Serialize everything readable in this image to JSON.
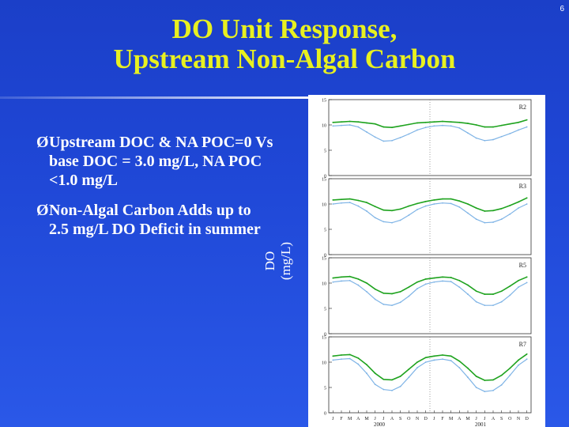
{
  "slide": {
    "number": "6",
    "title_line1": "DO Unit Response,",
    "title_line2": "Upstream Non-Algal Carbon",
    "bullets": [
      {
        "marker": "Ø",
        "text": "Upstream DOC & NA POC=0 Vs base DOC = 3.0 mg/L, NA POC <1.0 mg/L"
      },
      {
        "marker": "Ø",
        "text": "Non-Algal Carbon Adds up to 2.5 mg/L DO Deficit in summer"
      }
    ]
  },
  "colors": {
    "title": "#e8f020",
    "green_series": "#1fa31f",
    "blue_series": "#7fb4e6",
    "background": "#1f47d6"
  },
  "chart_data": {
    "type": "line",
    "ylabel": "DO (mg/L)",
    "x_month_labels": [
      "J",
      "F",
      "M",
      "A",
      "M",
      "J",
      "J",
      "A",
      "S",
      "O",
      "N",
      "D",
      "J",
      "F",
      "M",
      "A",
      "M",
      "J",
      "J",
      "A",
      "S",
      "O",
      "N",
      "D"
    ],
    "x_year_labels": [
      "2000",
      "2001"
    ],
    "ylim": [
      0,
      15
    ],
    "yticks": [
      "0",
      "5",
      "10",
      "15"
    ],
    "panels": [
      {
        "label": "R2",
        "green": [
          10.5,
          10.6,
          10.7,
          10.6,
          10.4,
          10.2,
          9.6,
          9.5,
          9.8,
          10.1,
          10.4,
          10.5,
          10.6,
          10.7,
          10.6,
          10.5,
          10.3,
          10.0,
          9.6,
          9.6,
          9.9,
          10.2,
          10.5,
          11.0
        ],
        "blue": [
          9.8,
          9.9,
          10.0,
          9.6,
          8.6,
          7.6,
          6.8,
          6.9,
          7.5,
          8.2,
          9.0,
          9.5,
          9.8,
          9.9,
          9.8,
          9.4,
          8.4,
          7.4,
          6.9,
          7.1,
          7.7,
          8.3,
          9.0,
          9.6
        ]
      },
      {
        "label": "R3",
        "green": [
          10.8,
          10.9,
          11.0,
          10.7,
          10.3,
          9.5,
          8.8,
          8.7,
          9.0,
          9.6,
          10.1,
          10.5,
          10.8,
          11.0,
          11.0,
          10.6,
          10.0,
          9.2,
          8.6,
          8.7,
          9.1,
          9.7,
          10.4,
          11.2
        ],
        "blue": [
          10.0,
          10.2,
          10.3,
          9.6,
          8.6,
          7.3,
          6.5,
          6.3,
          6.8,
          7.8,
          8.9,
          9.6,
          10.0,
          10.2,
          10.1,
          9.4,
          8.2,
          7.0,
          6.3,
          6.4,
          7.0,
          8.0,
          9.2,
          10.0
        ]
      },
      {
        "label": "R5",
        "green": [
          11.0,
          11.2,
          11.3,
          10.8,
          10.0,
          8.8,
          8.0,
          7.9,
          8.3,
          9.2,
          10.2,
          10.8,
          11.0,
          11.2,
          11.1,
          10.5,
          9.6,
          8.4,
          7.8,
          7.8,
          8.4,
          9.4,
          10.5,
          11.2
        ],
        "blue": [
          10.2,
          10.4,
          10.5,
          9.6,
          8.3,
          6.8,
          5.8,
          5.6,
          6.2,
          7.4,
          8.9,
          9.8,
          10.2,
          10.4,
          10.3,
          9.2,
          7.8,
          6.3,
          5.6,
          5.6,
          6.3,
          7.6,
          9.2,
          10.1
        ]
      },
      {
        "label": "R7",
        "green": [
          11.2,
          11.4,
          11.5,
          10.8,
          9.5,
          7.8,
          6.6,
          6.5,
          7.2,
          8.6,
          10.0,
          10.9,
          11.2,
          11.4,
          11.2,
          10.2,
          8.8,
          7.2,
          6.4,
          6.5,
          7.4,
          8.8,
          10.4,
          11.6
        ],
        "blue": [
          10.4,
          10.6,
          10.7,
          9.6,
          7.8,
          5.6,
          4.6,
          4.4,
          5.2,
          7.0,
          8.9,
          10.0,
          10.4,
          10.6,
          10.3,
          8.9,
          7.0,
          5.0,
          4.2,
          4.4,
          5.5,
          7.4,
          9.4,
          10.6
        ]
      }
    ]
  }
}
